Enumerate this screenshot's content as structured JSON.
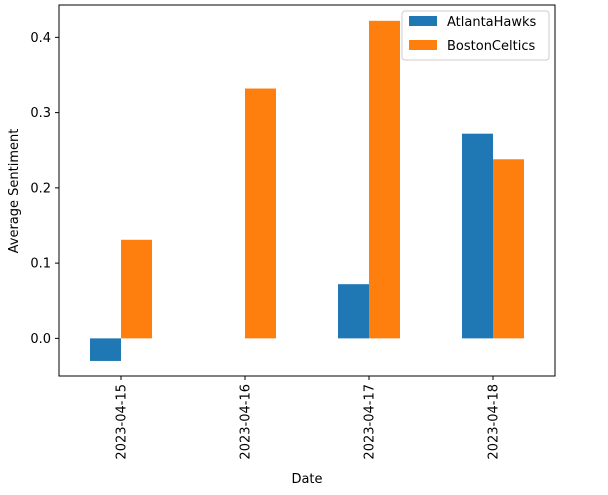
{
  "chart_data": {
    "type": "bar",
    "categories": [
      "2023-04-15",
      "2023-04-16",
      "2023-04-17",
      "2023-04-18"
    ],
    "series": [
      {
        "name": "AtlantaHawks",
        "color": "#1f77b4",
        "values": [
          -0.03,
          0.0,
          0.072,
          0.272
        ]
      },
      {
        "name": "BostonCeltics",
        "color": "#ff7f0e",
        "values": [
          0.131,
          0.332,
          0.422,
          0.238
        ]
      }
    ],
    "xlabel": "Date",
    "ylabel": "Average Sentiment",
    "ylim": [
      -0.05,
      0.443
    ],
    "yticks": [
      0.0,
      0.1,
      0.2,
      0.3,
      0.4
    ],
    "ytick_labels": [
      "0.0",
      "0.1",
      "0.2",
      "0.3",
      "0.4"
    ],
    "grid": false,
    "legend_position": "top-right",
    "xtick_rotation": "vertical"
  }
}
